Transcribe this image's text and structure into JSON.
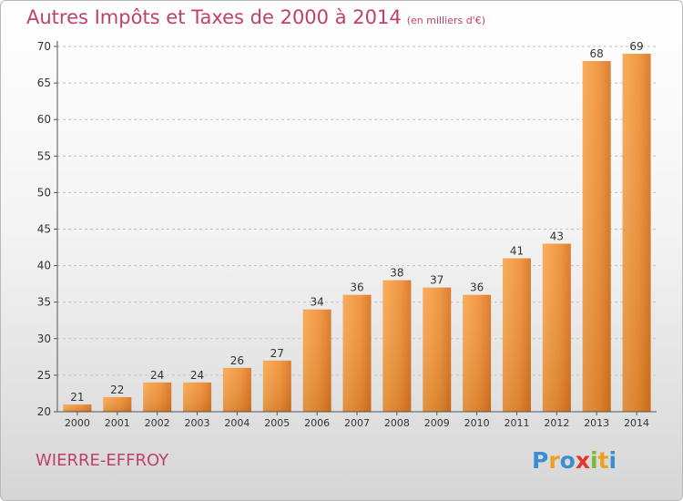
{
  "chart_data": {
    "type": "bar",
    "title": "Autres Impôts et Taxes de 2000 à 2014",
    "subtitle": "(en milliers d'€)",
    "categories": [
      "2000",
      "2001",
      "2002",
      "2003",
      "2004",
      "2005",
      "2006",
      "2007",
      "2008",
      "2009",
      "2010",
      "2011",
      "2012",
      "2013",
      "2014"
    ],
    "values": [
      21,
      22,
      24,
      24,
      26,
      27,
      34,
      36,
      38,
      37,
      36,
      41,
      43,
      68,
      69
    ],
    "ylim": [
      20,
      70
    ],
    "yticks": [
      20,
      25,
      30,
      35,
      40,
      45,
      50,
      55,
      60,
      65,
      70
    ],
    "grid": "horizontal-dashed",
    "bar_color": "#f08a2a",
    "title_color": "#c0406a"
  },
  "footer": {
    "town": "WIERRE-EFFROY",
    "logo_letters": [
      "P",
      "r",
      "o",
      "x",
      "i",
      "t",
      "i"
    ],
    "logo_colors": [
      "#3b8fd1",
      "#f0a020",
      "#3b8fd1",
      "#e8332a",
      "#7cb832",
      "#f0a020",
      "#3b8fd1"
    ]
  }
}
